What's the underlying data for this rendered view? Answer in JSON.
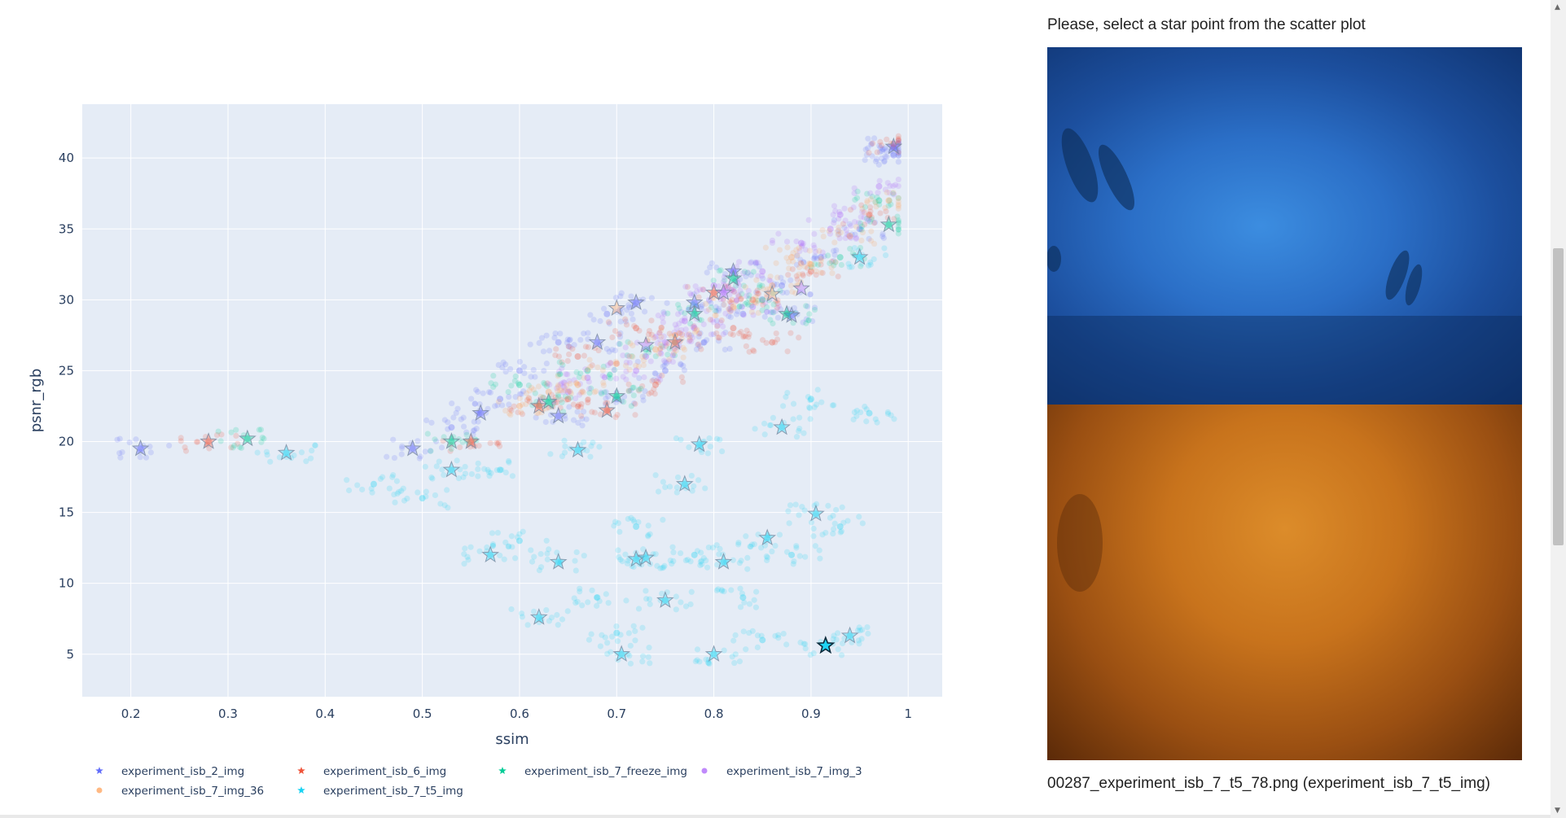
{
  "chart_data": {
    "type": "scatter",
    "xlabel": "ssim",
    "ylabel": "psnr_rgb",
    "xlim": [
      0.15,
      1.035
    ],
    "ylim": [
      2.0,
      43.8
    ],
    "x_ticks": [
      0.2,
      0.3,
      0.4,
      0.5,
      0.6,
      0.7,
      0.8,
      0.9,
      1
    ],
    "x_tick_labels": [
      "0.2",
      "0.3",
      "0.4",
      "0.5",
      "0.6",
      "0.7",
      "0.8",
      "0.9",
      "1"
    ],
    "y_ticks": [
      5,
      10,
      15,
      20,
      25,
      30,
      35,
      40
    ],
    "y_tick_labels": [
      "5",
      "10",
      "15",
      "20",
      "25",
      "30",
      "35",
      "40"
    ],
    "grid": true,
    "legend_placement": "bottom",
    "series": [
      {
        "name": "experiment_isb_2_img",
        "color": "#636efa",
        "points": [
          [
            0.21,
            19.5
          ],
          [
            0.49,
            19.5
          ],
          [
            0.56,
            22
          ],
          [
            0.64,
            21.8
          ],
          [
            0.68,
            27
          ],
          [
            0.72,
            29.8
          ],
          [
            0.78,
            29.8
          ],
          [
            0.82,
            32
          ],
          [
            0.88,
            28.9
          ],
          [
            0.985,
            40.8
          ],
          [
            0.985,
            40.2
          ],
          [
            0.985,
            40.7
          ],
          [
            0.7,
            23
          ],
          [
            0.75,
            25
          ],
          [
            0.79,
            27
          ],
          [
            0.83,
            29
          ],
          [
            0.87,
            31
          ],
          [
            0.91,
            33
          ],
          [
            0.95,
            35
          ],
          [
            0.6,
            25
          ],
          [
            0.64,
            27
          ],
          [
            0.69,
            29
          ],
          [
            0.53,
            21
          ],
          [
            0.58,
            23
          ]
        ],
        "stars": [
          [
            0.21,
            19.5
          ],
          [
            0.49,
            19.5
          ],
          [
            0.56,
            22
          ],
          [
            0.64,
            21.8
          ],
          [
            0.68,
            27
          ],
          [
            0.72,
            29.8
          ],
          [
            0.78,
            29.8
          ],
          [
            0.82,
            32
          ],
          [
            0.88,
            28.9
          ],
          [
            0.985,
            40.8
          ]
        ]
      },
      {
        "name": "experiment_isb_6_img",
        "color": "#ef553b",
        "points": [
          [
            0.28,
            20
          ],
          [
            0.55,
            20
          ],
          [
            0.62,
            22.5
          ],
          [
            0.65,
            23
          ],
          [
            0.69,
            22.2
          ],
          [
            0.76,
            27
          ],
          [
            0.8,
            30.5
          ],
          [
            0.82,
            28
          ],
          [
            0.66,
            26
          ],
          [
            0.72,
            28
          ],
          [
            0.84,
            30
          ],
          [
            0.9,
            32
          ],
          [
            0.96,
            36
          ],
          [
            0.985,
            41
          ],
          [
            0.74,
            24
          ],
          [
            0.86,
            27
          ]
        ],
        "stars": [
          [
            0.28,
            20
          ],
          [
            0.55,
            20
          ],
          [
            0.62,
            22.5
          ],
          [
            0.69,
            22.2
          ],
          [
            0.76,
            27
          ],
          [
            0.8,
            30.5
          ]
        ]
      },
      {
        "name": "experiment_isb_7_freeze_img",
        "color": "#00cc96",
        "points": [
          [
            0.32,
            20.2
          ],
          [
            0.53,
            20
          ],
          [
            0.63,
            22.8
          ],
          [
            0.7,
            23.2
          ],
          [
            0.78,
            29
          ],
          [
            0.82,
            31.5
          ],
          [
            0.875,
            29
          ],
          [
            0.98,
            35.3
          ],
          [
            0.6,
            24
          ],
          [
            0.67,
            25
          ],
          [
            0.73,
            26.5
          ],
          [
            0.85,
            30
          ],
          [
            0.93,
            33
          ],
          [
            0.97,
            37
          ]
        ],
        "stars": [
          [
            0.32,
            20.2
          ],
          [
            0.53,
            20
          ],
          [
            0.63,
            22.8
          ],
          [
            0.7,
            23.2
          ],
          [
            0.78,
            29
          ],
          [
            0.82,
            31.5
          ],
          [
            0.875,
            29
          ],
          [
            0.98,
            35.3
          ]
        ]
      },
      {
        "name": "experiment_isb_7_img_3",
        "color": "#ab63fa",
        "points": [
          [
            0.65,
            23.5
          ],
          [
            0.73,
            26
          ],
          [
            0.77,
            28.5
          ],
          [
            0.81,
            30.5
          ],
          [
            0.85,
            32
          ],
          [
            0.89,
            34
          ],
          [
            0.93,
            36
          ],
          [
            0.97,
            38
          ],
          [
            0.67,
            24.5
          ],
          [
            0.75,
            27
          ],
          [
            0.8,
            31
          ],
          [
            0.92,
            35
          ],
          [
            0.72,
            25
          ],
          [
            0.78,
            28
          ],
          [
            0.84,
            29.5
          ]
        ],
        "stars": [
          [
            0.81,
            30.5
          ],
          [
            0.89,
            30.8
          ],
          [
            0.73,
            26.8
          ]
        ]
      },
      {
        "name": "experiment_isb_7_img_36",
        "color": "#ffa15a",
        "points": [
          [
            0.6,
            22.5
          ],
          [
            0.66,
            24
          ],
          [
            0.7,
            25.5
          ],
          [
            0.76,
            27.5
          ],
          [
            0.82,
            29.5
          ],
          [
            0.86,
            31
          ],
          [
            0.9,
            32.5
          ],
          [
            0.94,
            34.5
          ],
          [
            0.98,
            37
          ],
          [
            0.63,
            23.5
          ],
          [
            0.74,
            26.5
          ],
          [
            0.88,
            33
          ]
        ],
        "stars": [
          [
            0.7,
            29.4
          ],
          [
            0.86,
            30.4
          ]
        ]
      },
      {
        "name": "experiment_isb_7_t5_img",
        "color": "#19d3f3",
        "points": [
          [
            0.36,
            19.2
          ],
          [
            0.53,
            18
          ],
          [
            0.57,
            12
          ],
          [
            0.62,
            7.6
          ],
          [
            0.64,
            11.5
          ],
          [
            0.66,
            19.4
          ],
          [
            0.705,
            5
          ],
          [
            0.72,
            11.7
          ],
          [
            0.73,
            11.8
          ],
          [
            0.75,
            8.8
          ],
          [
            0.77,
            17
          ],
          [
            0.785,
            19.8
          ],
          [
            0.8,
            5
          ],
          [
            0.81,
            11.5
          ],
          [
            0.855,
            13.2
          ],
          [
            0.87,
            21
          ],
          [
            0.905,
            14.9
          ],
          [
            0.915,
            5.6
          ],
          [
            0.94,
            6.3
          ],
          [
            0.95,
            33
          ],
          [
            0.45,
            17
          ],
          [
            0.5,
            16
          ],
          [
            0.6,
            13
          ],
          [
            0.68,
            9
          ],
          [
            0.72,
            14
          ],
          [
            0.78,
            12
          ],
          [
            0.83,
            9
          ],
          [
            0.88,
            12
          ],
          [
            0.93,
            14
          ],
          [
            0.58,
            18
          ],
          [
            0.7,
            6.5
          ],
          [
            0.85,
            6
          ],
          [
            0.9,
            23
          ],
          [
            0.96,
            22
          ]
        ],
        "stars": [
          [
            0.36,
            19.2
          ],
          [
            0.53,
            18
          ],
          [
            0.57,
            12
          ],
          [
            0.62,
            7.6
          ],
          [
            0.64,
            11.5
          ],
          [
            0.66,
            19.4
          ],
          [
            0.705,
            5
          ],
          [
            0.72,
            11.7
          ],
          [
            0.73,
            11.8
          ],
          [
            0.75,
            8.8
          ],
          [
            0.77,
            17
          ],
          [
            0.785,
            19.8
          ],
          [
            0.8,
            5
          ],
          [
            0.81,
            11.5
          ],
          [
            0.855,
            13.2
          ],
          [
            0.87,
            21
          ],
          [
            0.905,
            14.9
          ],
          [
            0.94,
            6.3
          ],
          [
            0.95,
            33
          ]
        ],
        "selected": [
          0.915,
          5.6
        ]
      }
    ],
    "legend": [
      {
        "label": "experiment_isb_2_img",
        "color": "#636efa",
        "symbol": "star"
      },
      {
        "label": "experiment_isb_6_img",
        "color": "#ef553b",
        "symbol": "star"
      },
      {
        "label": "experiment_isb_7_freeze_img",
        "color": "#00cc96",
        "symbol": "star"
      },
      {
        "label": "experiment_isb_7_img_3",
        "color": "#ab63fa",
        "symbol": "circle"
      },
      {
        "label": "experiment_isb_7_img_36",
        "color": "#ffa15a",
        "symbol": "circle"
      },
      {
        "label": "experiment_isb_7_t5_img",
        "color": "#19d3f3",
        "symbol": "star"
      }
    ]
  },
  "panel": {
    "prompt": "Please, select a star point from the scatter plot",
    "caption": "00287_experiment_isb_7_t5_78.png (experiment_isb_7_t5_img)"
  }
}
